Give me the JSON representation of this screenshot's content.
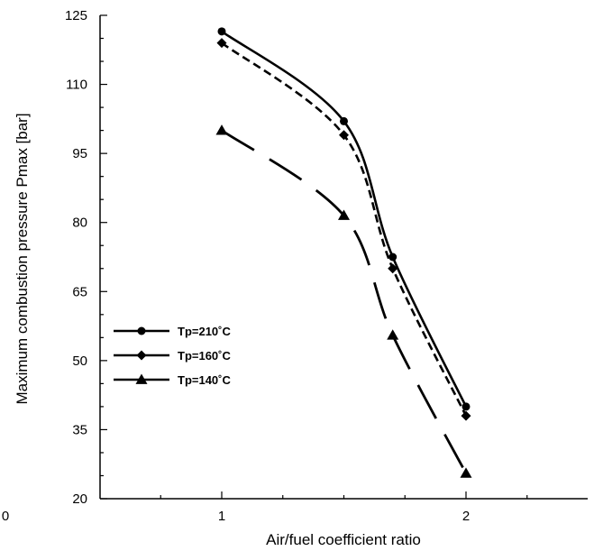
{
  "chart_data": {
    "type": "line",
    "xlabel": "Air/fuel coefficient ratio",
    "ylabel": "Maximum combustion pressure Pmax [bar]",
    "xlim": [
      0,
      2.5
    ],
    "ylim": [
      20,
      125
    ],
    "x_ticks": [
      "0",
      "1",
      "2"
    ],
    "y_ticks": [
      "20",
      "35",
      "50",
      "65",
      "80",
      "95",
      "110",
      "125"
    ],
    "grid": false,
    "legend_position": "bottom-left",
    "series": [
      {
        "name": "Tp=210˚C",
        "marker": "circle",
        "dash": "solid",
        "color": "#000000",
        "x": [
          1.0,
          1.5,
          1.7,
          2.0
        ],
        "y": [
          121.5,
          102.0,
          72.5,
          40.0
        ]
      },
      {
        "name": "Tp=160˚C",
        "marker": "diamond",
        "dash": "short-dash",
        "color": "#000000",
        "x": [
          1.0,
          1.5,
          1.7,
          2.0
        ],
        "y": [
          119.0,
          99.0,
          70.0,
          38.0
        ]
      },
      {
        "name": "Tp=140˚C",
        "marker": "triangle",
        "dash": "long-dash",
        "color": "#000000",
        "x": [
          1.0,
          1.5,
          1.7,
          2.0
        ],
        "y": [
          100.0,
          81.5,
          55.5,
          25.5
        ]
      }
    ]
  }
}
